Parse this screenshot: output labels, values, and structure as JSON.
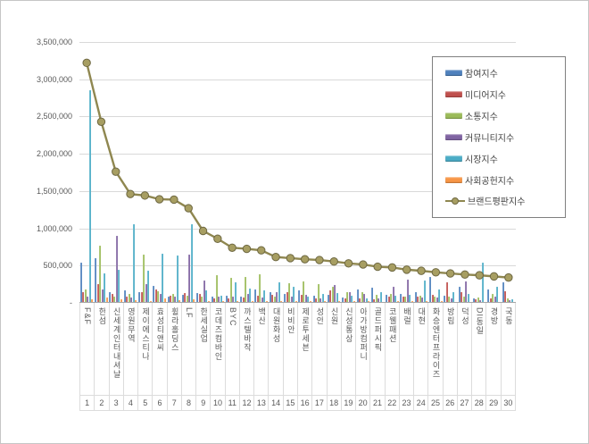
{
  "window": {
    "background": "#ffffff",
    "frame_border_color": "#c6c6c6",
    "gridline_color": "#d9d9d9",
    "axis_text_color": "#595959",
    "legend_border_color": "#7f7f7f"
  },
  "chart_data": {
    "type": "bar",
    "subtype": "grouped bars with overlay line (brand reputation index chart)",
    "title": "",
    "xlabel": "",
    "ylabel": "",
    "grid": true,
    "legend_position": "top-right overlay box",
    "y_axis": {
      "min": 0,
      "max": 3500000,
      "tick_interval": 500000,
      "tick_labels": [
        "3,500,000",
        "3,000,000",
        "2,500,000",
        "2,000,000",
        "1,500,000",
        "1,000,000",
        "500,000",
        "-"
      ]
    },
    "categories": [
      "F&F",
      "한섬",
      "신세계인터내셔날",
      "영원무역",
      "제이에스티나",
      "효성티앤씨",
      "휠라홀딩스",
      "LF",
      "한세실업",
      "코데즈컴바인",
      "BYC",
      "까스텔바작",
      "백산",
      "대원화성",
      "비비안",
      "제로투세븐",
      "성안",
      "신원",
      "신성통상",
      "아가방컴퍼니",
      "골드퍼시픽",
      "코웰패션",
      "배럴",
      "대현",
      "화승엔터프라이즈",
      "방림",
      "덕성",
      "DI동일",
      "경방",
      "국동"
    ],
    "rank_labels": [
      "1",
      "2",
      "3",
      "4",
      "5",
      "6",
      "7",
      "8",
      "9",
      "10",
      "11",
      "12",
      "13",
      "14",
      "15",
      "16",
      "17",
      "18",
      "19",
      "20",
      "21",
      "22",
      "23",
      "24",
      "25",
      "26",
      "27",
      "28",
      "29",
      "30"
    ],
    "series": [
      {
        "name": "참여지수",
        "type": "bar",
        "color": "#4f81bd",
        "values": [
          540000,
          600000,
          150000,
          165000,
          140000,
          230000,
          90000,
          105000,
          135000,
          85000,
          95000,
          80000,
          180000,
          140000,
          120000,
          170000,
          95000,
          110000,
          70000,
          175000,
          205000,
          110000,
          120000,
          150000,
          350000,
          100000,
          215000,
          60000,
          175000,
          270000
        ]
      },
      {
        "name": "미디어지수",
        "type": "bar",
        "color": "#c0504d",
        "values": [
          150000,
          250000,
          120000,
          90000,
          150000,
          175000,
          100000,
          130000,
          120000,
          60000,
          65000,
          70000,
          100000,
          110000,
          150000,
          110000,
          60000,
          170000,
          60000,
          60000,
          45000,
          85000,
          80000,
          90000,
          110000,
          270000,
          140000,
          50000,
          60000,
          155000
        ]
      },
      {
        "name": "소통지수",
        "type": "bar",
        "color": "#9bbb59",
        "values": [
          180000,
          770000,
          90000,
          120000,
          650000,
          160000,
          120000,
          95000,
          90000,
          370000,
          340000,
          350000,
          380000,
          90000,
          260000,
          285000,
          250000,
          215000,
          140000,
          150000,
          110000,
          120000,
          90000,
          100000,
          90000,
          80000,
          90000,
          70000,
          125000,
          60000
        ]
      },
      {
        "name": "커뮤니티지수",
        "type": "bar",
        "color": "#8064a2",
        "values": [
          90000,
          185000,
          900000,
          70000,
          255000,
          120000,
          80000,
          650000,
          300000,
          90000,
          80000,
          120000,
          70000,
          140000,
          90000,
          110000,
          60000,
          240000,
          140000,
          120000,
          60000,
          215000,
          310000,
          75000,
          70000,
          60000,
          285000,
          40000,
          90000,
          40000
        ]
      },
      {
        "name": "시장지수",
        "type": "bar",
        "color": "#4bacc6",
        "values": [
          2850000,
          395000,
          440000,
          1060000,
          435000,
          655000,
          640000,
          1050000,
          165000,
          100000,
          280000,
          190000,
          170000,
          280000,
          220000,
          80000,
          120000,
          130000,
          100000,
          60000,
          150000,
          100000,
          110000,
          305000,
          175000,
          150000,
          120000,
          540000,
          215000,
          50000
        ]
      },
      {
        "name": "사회공헌지수",
        "type": "bar",
        "color": "#f79646",
        "values": [
          50000,
          70000,
          50000,
          40000,
          30000,
          60000,
          35000,
          45000,
          30000,
          25000,
          25000,
          25000,
          25000,
          25000,
          30000,
          20000,
          20000,
          25000,
          20000,
          20000,
          15000,
          20000,
          20000,
          20000,
          20000,
          15000,
          15000,
          15000,
          15000,
          15000
        ]
      },
      {
        "name": "브랜드평판지수",
        "type": "line",
        "color": "#8f8750",
        "marker_fill": "#a79e62",
        "marker_edge": "#6e6842",
        "values": [
          3220000,
          2430000,
          1760000,
          1460000,
          1440000,
          1390000,
          1385000,
          1270000,
          965000,
          860000,
          740000,
          725000,
          705000,
          615000,
          600000,
          585000,
          575000,
          555000,
          530000,
          515000,
          485000,
          475000,
          445000,
          430000,
          410000,
          395000,
          380000,
          370000,
          355000,
          340000
        ]
      }
    ]
  }
}
